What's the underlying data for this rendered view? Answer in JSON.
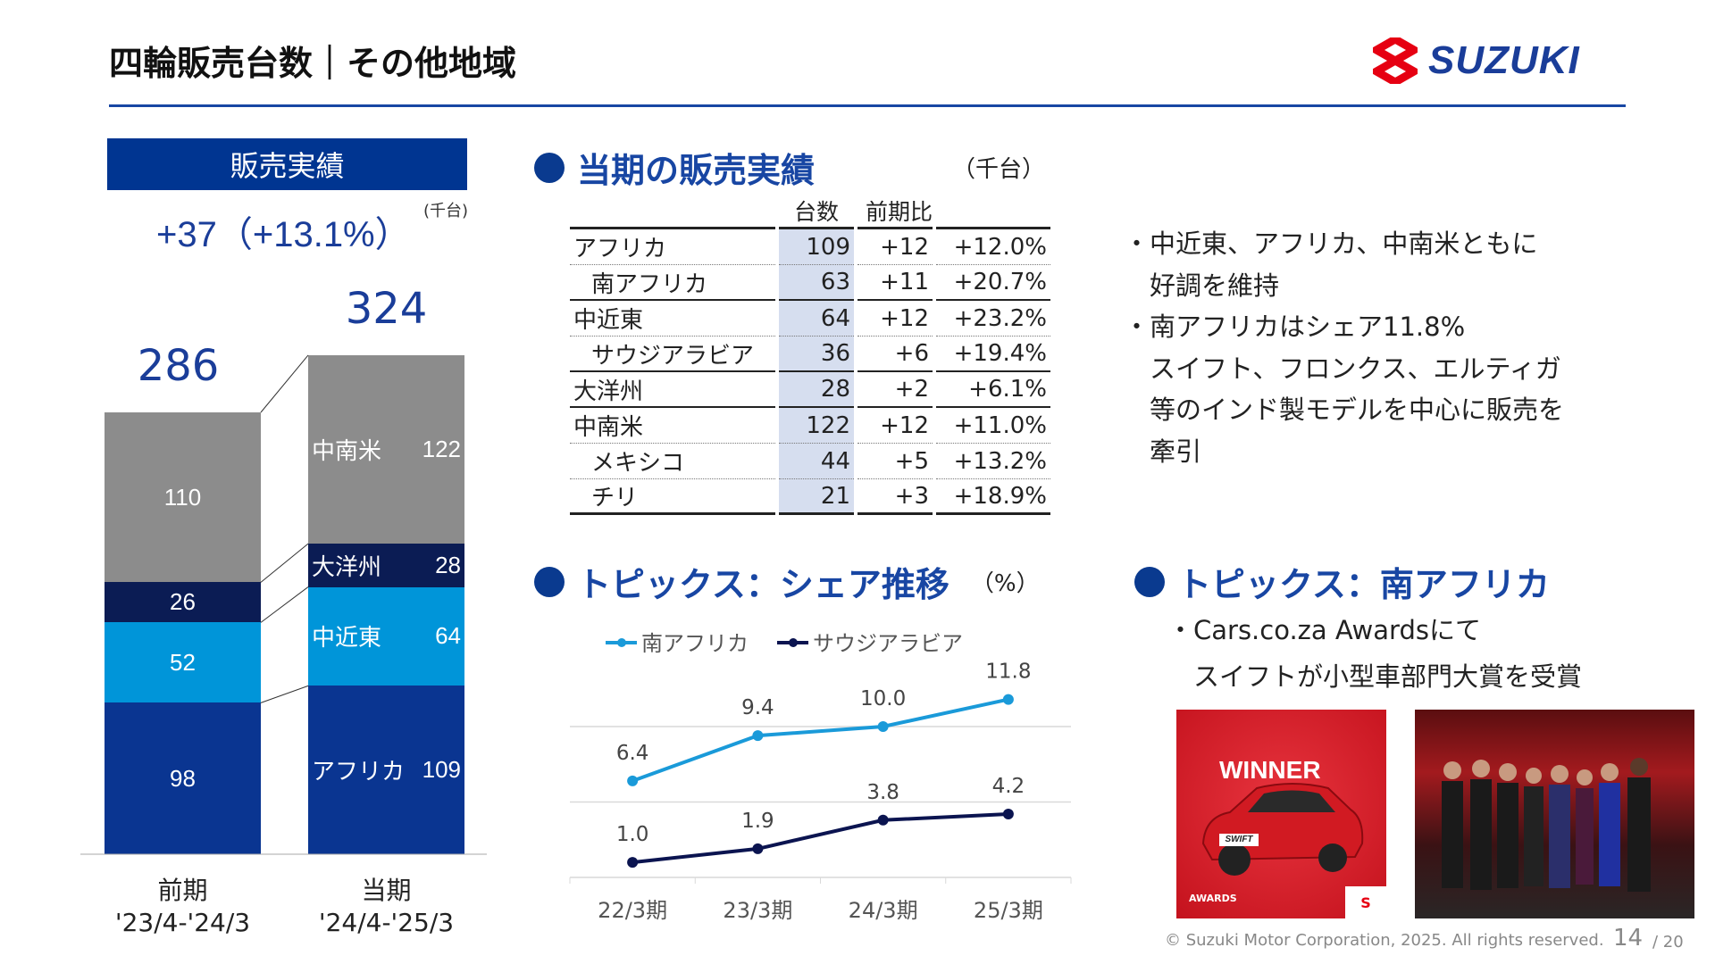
{
  "header": {
    "title": "四輪販売台数｜その他地域",
    "logo_text": "SUZUKI",
    "brand_color": "#1a3d99",
    "logo_red": "#e60012"
  },
  "sales": {
    "heading": "販売実績",
    "diff": "+37（+13.1%）",
    "unit": "(千台)",
    "periods": [
      {
        "label": "前期",
        "range": "'23/4-'24/3",
        "total": "286",
        "segments": [
          {
            "region": "アフリカ",
            "value": 98,
            "show_label": false
          },
          {
            "region": "中近東",
            "value": 52,
            "show_label": false
          },
          {
            "region": "大洋州",
            "value": 26,
            "show_label": false
          },
          {
            "region": "中南米",
            "value": 110,
            "show_label": false
          }
        ]
      },
      {
        "label": "当期",
        "range": "'24/4-'25/3",
        "total": "324",
        "segments": [
          {
            "region": "アフリカ",
            "value": 109,
            "show_label": true
          },
          {
            "region": "中近東",
            "value": 64,
            "show_label": true
          },
          {
            "region": "大洋州",
            "value": 28,
            "show_label": true
          },
          {
            "region": "中南米",
            "value": 122,
            "show_label": true
          }
        ]
      }
    ],
    "colors": {
      "アフリカ": "#0a3591",
      "中近東": "#0095d9",
      "大洋州": "#0b1c54",
      "中南米": "#8c8c8c"
    }
  },
  "current": {
    "title": "当期の販売実績",
    "unit": "（千台）",
    "headers": [
      "",
      "台数",
      "前期比",
      ""
    ],
    "rows": [
      {
        "region": "アフリカ",
        "units": "109",
        "diff": "+12",
        "pct": "+12.0%",
        "sub": false
      },
      {
        "region": "南アフリカ",
        "units": "63",
        "diff": "+11",
        "pct": "+20.7%",
        "sub": true
      },
      {
        "region": "中近東",
        "units": "64",
        "diff": "+12",
        "pct": "+23.2%",
        "sub": false
      },
      {
        "region": "サウジアラビア",
        "units": "36",
        "diff": "+6",
        "pct": "+19.4%",
        "sub": true
      },
      {
        "region": "大洋州",
        "units": "28",
        "diff": "+2",
        "pct": "+6.1%",
        "sub": false
      },
      {
        "region": "中南米",
        "units": "122",
        "diff": "+12",
        "pct": "+11.0%",
        "sub": false
      },
      {
        "region": "メキシコ",
        "units": "44",
        "diff": "+5",
        "pct": "+13.2%",
        "sub": true
      },
      {
        "region": "チリ",
        "units": "21",
        "diff": "+3",
        "pct": "+18.9%",
        "sub": true
      }
    ]
  },
  "notes": [
    "・中近東、アフリカ、中南米ともに",
    "　好調を維持",
    "・南アフリカはシェア11.8%",
    "　スイフト、フロンクス、エルティガ",
    "　等のインド製モデルを中心に販売を",
    "　牽引"
  ],
  "share": {
    "title": "トピックス：シェア推移",
    "unit": "（%）"
  },
  "chart_data": {
    "type": "line",
    "categories": [
      "22/3期",
      "23/3期",
      "24/3期",
      "25/3期"
    ],
    "series": [
      {
        "name": "南アフリカ",
        "values": [
          6.4,
          9.4,
          10.0,
          11.8
        ],
        "color": "#1a9ad9"
      },
      {
        "name": "サウジアラビア",
        "values": [
          1.0,
          1.9,
          3.8,
          4.2
        ],
        "color": "#0b1450"
      }
    ],
    "ylim": [
      0,
      15
    ],
    "gridlines": [
      5,
      10
    ],
    "legend": "top",
    "data_labels": true
  },
  "south_africa": {
    "title": "トピックス：南アフリカ",
    "lines": [
      "・Cars.co.za Awardsにて",
      "　スイフトが小型車部門大賞を受賞"
    ],
    "image1_text": "WINNER",
    "image1_badge": "SWIFT",
    "image1_awards": "AWARDS"
  },
  "footer": {
    "copyright": "© Suzuki Motor Corporation, 2025. All rights reserved.",
    "page": "14",
    "total": "/ 20"
  }
}
